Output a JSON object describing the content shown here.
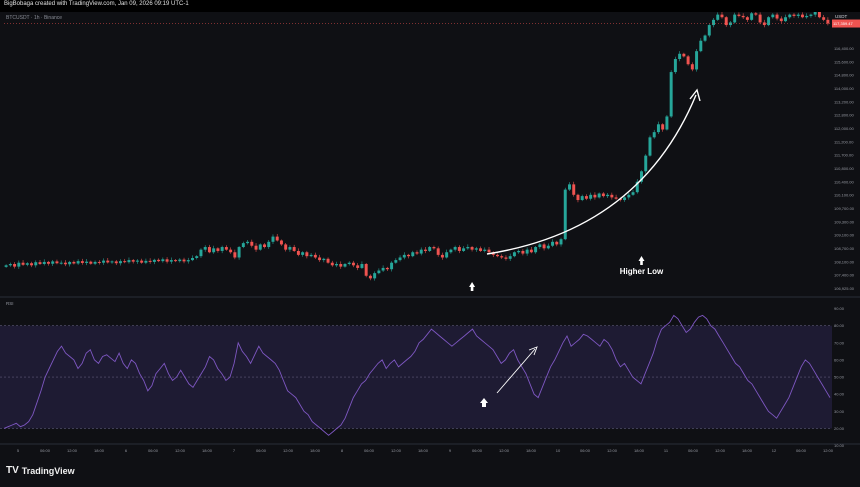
{
  "header": {
    "title": "BigBobaga created with TradingView.com, Jan 09, 2026 09:19 UTC-1",
    "symbol": "BTCUSDT · 1h · Binance",
    "currency": "USDT",
    "current_price": "117,359.47"
  },
  "footer": {
    "logo": "TradingView",
    "logo_mark": "TV"
  },
  "colors": {
    "up": "#26a69a",
    "down": "#ef5350",
    "rsi": "#7e57c2",
    "rsi_band": "#1e1b33",
    "bg": "#0f1014",
    "annotation": "#ffffff"
  },
  "chart_data": [
    {
      "type": "candlestick",
      "title": "BTCUSDT · 1h · Binance",
      "price_axis_labels": [
        "116,400.00",
        "115,600.00",
        "114,800.00",
        "114,000.00",
        "113,200.00",
        "112,800.00",
        "112,000.00",
        "111,200.00",
        "111,700.00",
        "110,800.00",
        "110,400.00",
        "110,100.00",
        "109,700.00",
        "109,300.00",
        "109,100.00",
        "108,700.00",
        "108,100.00",
        "107,400.00",
        "106,925.00"
      ],
      "time_labels": [
        "5",
        "06:00",
        "12:00",
        "18:00",
        "6",
        "06:00",
        "12:00",
        "18:00",
        "7",
        "06:00",
        "12:00",
        "18:00",
        "8",
        "06:00",
        "12:00",
        "18:00",
        "9",
        "06:00",
        "12:00",
        "18:00",
        "10",
        "06:00",
        "12:00",
        "18:00",
        "11",
        "06:00",
        "12:00",
        "18:00",
        "12",
        "06:00",
        "12:00"
      ],
      "ylim": [
        106925,
        117800
      ],
      "annotations": [
        {
          "label": "",
          "kind": "up-arrow",
          "x": 110,
          "note": ""
        },
        {
          "label": "Higher Low",
          "kind": "up-arrow",
          "x": 150
        },
        {
          "label": "",
          "kind": "curved-arrow"
        }
      ],
      "closes": [
        108100,
        108150,
        108050,
        108200,
        108120,
        108180,
        108100,
        108220,
        108150,
        108230,
        108160,
        108250,
        108180,
        108200,
        108140,
        108230,
        108170,
        108260,
        108190,
        108240,
        108160,
        108230,
        108200,
        108280,
        108210,
        108250,
        108180,
        108260,
        108220,
        108300,
        108240,
        108280,
        108200,
        108270,
        108230,
        108310,
        108260,
        108330,
        108240,
        108300,
        108260,
        108320,
        108250,
        108300,
        108380,
        108450,
        108700,
        108800,
        108600,
        108750,
        108650,
        108800,
        108700,
        108600,
        108400,
        108800,
        108950,
        109000,
        108850,
        108700,
        108900,
        108800,
        109000,
        109200,
        109050,
        108900,
        108700,
        108800,
        108650,
        108500,
        108600,
        108450,
        108500,
        108400,
        108300,
        108350,
        108200,
        108100,
        108150,
        108050,
        108150,
        108200,
        108100,
        108000,
        108150,
        107700,
        107600,
        107800,
        107900,
        108000,
        107950,
        108200,
        108300,
        108400,
        108500,
        108450,
        108600,
        108550,
        108700,
        108650,
        108800,
        108750,
        108500,
        108400,
        108600,
        108700,
        108800,
        108650,
        108750,
        108800,
        108700,
        108750,
        108650,
        108700,
        108600,
        108500,
        108450,
        108400,
        108350,
        108450,
        108600,
        108650,
        108550,
        108700,
        108600,
        108800,
        108900,
        108750,
        108850,
        109000,
        108900,
        109100,
        111000,
        111200,
        110800,
        110600,
        110750,
        110650,
        110800,
        110700,
        110850,
        110750,
        110800,
        110700,
        110650,
        110600,
        110700,
        110800,
        110900,
        111300,
        111700,
        112300,
        113000,
        113200,
        113500,
        113300,
        113800,
        115500,
        116000,
        116200,
        116100,
        115800,
        115600,
        116300,
        116700,
        116900,
        117300,
        117500,
        117700,
        117600,
        117300,
        117400,
        117700,
        117650,
        117600,
        117500,
        117750,
        117700,
        117400,
        117300,
        117600,
        117700,
        117550,
        117450,
        117600,
        117700,
        117650,
        117700,
        117600,
        117650,
        117700,
        117800,
        117600,
        117500,
        117359
      ]
    },
    {
      "type": "line",
      "title": "RSI",
      "series": [
        {
          "name": "",
          "values": [
            20,
            21,
            22,
            23,
            21,
            22,
            24,
            28,
            35,
            42,
            50,
            55,
            60,
            65,
            68,
            64,
            62,
            60,
            55,
            58,
            64,
            66,
            60,
            58,
            62,
            63,
            61,
            59,
            64,
            58,
            55,
            60,
            58,
            52,
            48,
            42,
            45,
            52,
            55,
            58,
            52,
            48,
            50,
            54,
            50,
            46,
            44,
            48,
            52,
            56,
            62,
            60,
            55,
            52,
            48,
            50,
            58,
            70,
            65,
            62,
            58,
            63,
            68,
            64,
            62,
            60,
            58,
            54,
            48,
            42,
            40,
            38,
            34,
            30,
            28,
            24,
            22,
            20,
            18,
            16,
            18,
            20,
            22,
            26,
            32,
            38,
            42,
            46,
            48,
            52,
            55,
            58,
            60,
            55,
            58,
            60,
            56,
            58,
            60,
            62,
            65,
            70,
            72,
            75,
            78,
            76,
            74,
            72,
            70,
            68,
            70,
            72,
            74,
            76,
            78,
            74,
            72,
            70,
            68,
            66,
            62,
            58,
            60,
            64,
            66,
            60,
            56,
            52,
            46,
            40,
            38,
            44,
            50,
            56,
            60,
            65,
            70,
            74,
            68,
            70,
            72,
            75,
            74,
            72,
            70,
            68,
            72,
            70,
            66,
            60,
            56,
            58,
            54,
            50,
            48,
            46,
            52,
            58,
            64,
            72,
            78,
            80,
            82,
            86,
            84,
            80,
            76,
            78,
            82,
            85,
            86,
            84,
            80,
            78,
            74,
            70,
            66,
            62,
            58,
            56,
            52,
            48,
            46,
            42,
            38,
            34,
            30,
            28,
            26,
            30,
            34,
            38,
            44,
            50,
            56,
            60,
            58,
            54,
            50,
            46,
            42,
            38
          ]
        }
      ],
      "ylim": [
        15,
        95
      ],
      "levels": [
        80,
        50,
        20
      ],
      "axis_labels": [
        "90.00",
        "80.00",
        "70.00",
        "60.00",
        "50.00",
        "40.00",
        "30.00",
        "20.00",
        "10.00"
      ],
      "annotations": [
        {
          "kind": "up-arrow"
        },
        {
          "kind": "straight-arrow"
        }
      ]
    }
  ]
}
